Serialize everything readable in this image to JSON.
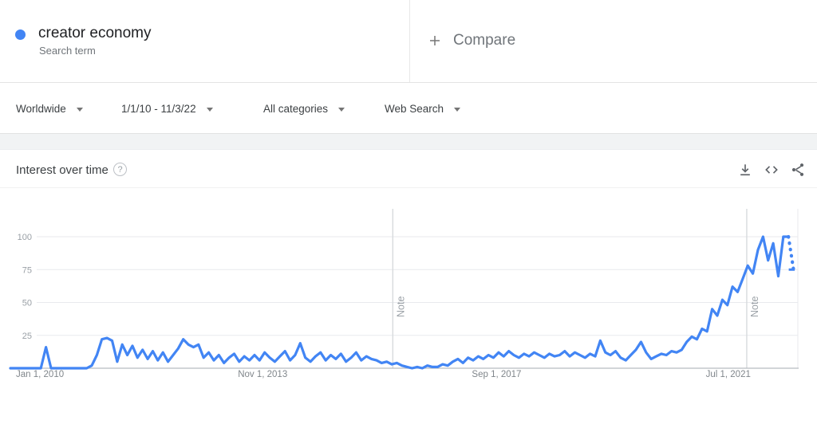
{
  "header": {
    "term": "creator economy",
    "term_type": "Search term",
    "compare_label": "Compare",
    "legend_color": "#4285f4"
  },
  "filters": [
    {
      "label": "Worldwide"
    },
    {
      "label": "1/1/10 - 11/3/22"
    },
    {
      "label": "All categories"
    },
    {
      "label": "Web Search"
    }
  ],
  "section": {
    "title": "Interest over time",
    "help_glyph": "?",
    "icons": [
      "download-icon",
      "embed-icon",
      "share-icon"
    ]
  },
  "colors": {
    "accent": "#4285f4",
    "gridline": "#e8eaed",
    "baseline": "#b8bcc1",
    "note_line": "#d7dadd",
    "axis_text": "#9aa0a6",
    "x_axis_text": "#80868b"
  },
  "chart_data": {
    "type": "line",
    "title": "Interest over time",
    "xlabel": "",
    "ylabel": "",
    "ylim": [
      0,
      100
    ],
    "grid": true,
    "legend_position": "none",
    "x_start_month": "2010-01",
    "x_end_month": "2022-11",
    "y_ticks": [
      25,
      50,
      75,
      100
    ],
    "x_tick_labels": [
      {
        "label": "Jan 1, 2010",
        "month_index": 0
      },
      {
        "label": "Nov 1, 2013",
        "month_index": 46
      },
      {
        "label": "Sep 1, 2017",
        "month_index": 92
      },
      {
        "label": "Jul 1, 2021",
        "month_index": 138
      }
    ],
    "notes": [
      {
        "label": "Note",
        "month_index": 75.2
      },
      {
        "label": "Note",
        "month_index": 144.8
      }
    ],
    "series": [
      {
        "name": "creator economy",
        "color": "#4285f4",
        "last_point_partial": true,
        "values": [
          0,
          0,
          0,
          0,
          0,
          0,
          0,
          16,
          0,
          0,
          0,
          0,
          0,
          0,
          0,
          0,
          2,
          10,
          22,
          23,
          21,
          5,
          18,
          10,
          17,
          8,
          14,
          7,
          13,
          6,
          12,
          5,
          10,
          15,
          22,
          18,
          16,
          18,
          8,
          12,
          6,
          10,
          4,
          8,
          11,
          5,
          9,
          6,
          10,
          6,
          12,
          8,
          5,
          9,
          13,
          6,
          10,
          19,
          8,
          5,
          9,
          12,
          6,
          10,
          7,
          11,
          5,
          8,
          12,
          6,
          9,
          7,
          6,
          4,
          5,
          3,
          4,
          2,
          1,
          0,
          1,
          0,
          2,
          1,
          1,
          3,
          2,
          5,
          7,
          4,
          8,
          6,
          9,
          7,
          10,
          8,
          12,
          9,
          13,
          10,
          8,
          11,
          9,
          12,
          10,
          8,
          11,
          9,
          10,
          13,
          9,
          12,
          10,
          8,
          11,
          9,
          21,
          12,
          10,
          13,
          8,
          6,
          10,
          14,
          20,
          12,
          7,
          9,
          11,
          10,
          13,
          12,
          14,
          20,
          24,
          22,
          30,
          28,
          45,
          40,
          52,
          48,
          62,
          58,
          68,
          78,
          72,
          90,
          100,
          82,
          95,
          70,
          100,
          100,
          75
        ]
      }
    ]
  }
}
